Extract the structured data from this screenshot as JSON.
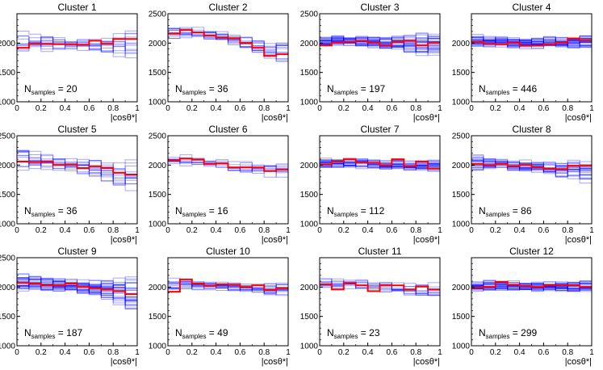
{
  "x_axis_label": "|cosθ*|",
  "n_label_base": "N",
  "n_label_subscript": "samples",
  "n_label_eq": " = ",
  "colors": {
    "highlight": "#ff0000",
    "band": "#0000ff",
    "frame": "#000000"
  },
  "chart_data": [
    {
      "type": "line",
      "title": "Cluster 1",
      "n_samples": "20",
      "xlim": [
        0,
        1
      ],
      "ylim": [
        1000,
        2500
      ],
      "yticks": [
        1000,
        1500,
        2000
      ],
      "xticks": [
        0,
        0.2,
        0.4,
        0.6,
        0.8,
        1
      ],
      "bins": 10,
      "red": [
        1920,
        1990,
        1990,
        1980,
        1980,
        1970,
        2040,
        1990,
        2070,
        2070
      ],
      "center": [
        2010,
        2010,
        2000,
        1990,
        1980,
        1975,
        1970,
        1965,
        1960,
        1950
      ],
      "spread": [
        200,
        180,
        150,
        120,
        100,
        100,
        120,
        160,
        210,
        260
      ],
      "n_lines": 12
    },
    {
      "type": "line",
      "title": "Cluster 2",
      "n_samples": "36",
      "xlim": [
        0,
        1
      ],
      "ylim": [
        1000,
        2500
      ],
      "yticks": [
        1000,
        1500,
        2000,
        2500
      ],
      "xticks": [
        0,
        0.2,
        0.4,
        0.6,
        0.8,
        1
      ],
      "bins": 10,
      "red": [
        2160,
        2220,
        2180,
        2130,
        2100,
        2080,
        2000,
        1920,
        1780,
        1810
      ],
      "center": [
        2170,
        2180,
        2160,
        2120,
        2090,
        2050,
        1980,
        1910,
        1840,
        1790
      ],
      "spread": [
        120,
        110,
        110,
        100,
        110,
        120,
        140,
        160,
        200,
        240
      ],
      "n_lines": 14
    },
    {
      "type": "line",
      "title": "Cluster 3",
      "n_samples": "197",
      "xlim": [
        0,
        1
      ],
      "ylim": [
        1000,
        2500
      ],
      "yticks": [
        1000,
        1500,
        2000,
        2500
      ],
      "xticks": [
        0,
        0.2,
        0.4,
        0.6,
        0.8,
        1
      ],
      "bins": 10,
      "red": [
        1960,
        2010,
        2020,
        2040,
        2010,
        1960,
        2020,
        2040,
        1960,
        2000
      ],
      "center": [
        2020,
        2030,
        2030,
        2030,
        2020,
        2000,
        2000,
        1990,
        1980,
        1980
      ],
      "spread": [
        120,
        100,
        90,
        90,
        100,
        110,
        120,
        160,
        220,
        260
      ],
      "n_lines": 30
    },
    {
      "type": "line",
      "title": "Cluster 4",
      "n_samples": "446",
      "xlim": [
        0,
        1
      ],
      "ylim": [
        1000,
        2500
      ],
      "yticks": [
        1000,
        1500,
        2000
      ],
      "xticks": [
        0,
        0.2,
        0.4,
        0.6,
        0.8,
        1
      ],
      "bins": 10,
      "red": [
        2020,
        1990,
        1980,
        2010,
        1960,
        1960,
        1980,
        2010,
        2080,
        2050
      ],
      "center": [
        2030,
        2020,
        2020,
        2010,
        2000,
        2000,
        2010,
        2020,
        2030,
        2040
      ],
      "spread": [
        120,
        110,
        100,
        100,
        100,
        100,
        110,
        110,
        120,
        130
      ],
      "n_lines": 30
    },
    {
      "type": "line",
      "title": "Cluster 5",
      "n_samples": "36",
      "xlim": [
        0,
        1
      ],
      "ylim": [
        1000,
        2500
      ],
      "yticks": [
        1000,
        1500,
        2000,
        2500
      ],
      "xticks": [
        0,
        0.2,
        0.4,
        0.6,
        0.8,
        1
      ],
      "bins": 10,
      "red": [
        2060,
        2050,
        2060,
        2000,
        2010,
        1950,
        1980,
        1950,
        1870,
        1840
      ],
      "center": [
        2090,
        2080,
        2070,
        2040,
        2010,
        1980,
        1950,
        1920,
        1870,
        1830
      ],
      "spread": [
        200,
        170,
        150,
        140,
        130,
        140,
        160,
        200,
        260,
        310
      ],
      "n_lines": 14
    },
    {
      "type": "line",
      "title": "Cluster 6",
      "n_samples": "16",
      "xlim": [
        0,
        1
      ],
      "ylim": [
        1000,
        2500
      ],
      "yticks": [
        1000,
        1500,
        2000,
        2500
      ],
      "xticks": [
        0,
        0.2,
        0.4,
        0.6,
        0.8,
        1
      ],
      "bins": 10,
      "red": [
        2080,
        2110,
        2090,
        2020,
        2030,
        1960,
        1960,
        1960,
        1900,
        1920
      ],
      "center": [
        2090,
        2080,
        2070,
        2040,
        2010,
        1990,
        1970,
        1950,
        1940,
        1930
      ],
      "spread": [
        120,
        110,
        110,
        100,
        100,
        100,
        110,
        130,
        160,
        180
      ],
      "n_lines": 10
    },
    {
      "type": "line",
      "title": "Cluster 7",
      "n_samples": "112",
      "xlim": [
        0,
        1
      ],
      "ylim": [
        1000,
        2500
      ],
      "yticks": [
        1000,
        1500,
        2000
      ],
      "xticks": [
        0,
        0.2,
        0.4,
        0.6,
        0.8,
        1
      ],
      "bins": 10,
      "red": [
        2010,
        2060,
        2100,
        2040,
        2040,
        2000,
        2100,
        1980,
        2060,
        1940
      ],
      "center": [
        2030,
        2030,
        2030,
        2030,
        2020,
        2010,
        2010,
        2000,
        2000,
        1990
      ],
      "spread": [
        100,
        90,
        90,
        90,
        90,
        90,
        90,
        100,
        110,
        120
      ],
      "n_lines": 26
    },
    {
      "type": "line",
      "title": "Cluster 8",
      "n_samples": "86",
      "xlim": [
        0,
        1
      ],
      "ylim": [
        1000,
        2500
      ],
      "yticks": [
        1000,
        1500,
        2000,
        2500
      ],
      "xticks": [
        0,
        0.2,
        0.4,
        0.6,
        0.8,
        1
      ],
      "bins": 10,
      "red": [
        2020,
        2000,
        2020,
        1980,
        2000,
        1960,
        1940,
        1930,
        1990,
        1990
      ],
      "center": [
        2040,
        2030,
        2020,
        2000,
        1990,
        1970,
        1950,
        1930,
        1910,
        1880
      ],
      "spread": [
        140,
        120,
        110,
        110,
        110,
        110,
        120,
        140,
        170,
        200
      ],
      "n_lines": 24
    },
    {
      "type": "line",
      "title": "Cluster 9",
      "n_samples": "187",
      "xlim": [
        0,
        1
      ],
      "ylim": [
        1000,
        2500
      ],
      "yticks": [
        1000,
        1500,
        2000,
        2500
      ],
      "xticks": [
        0,
        0.2,
        0.4,
        0.6,
        0.8,
        1
      ],
      "bins": 10,
      "red": [
        2070,
        2060,
        2030,
        2030,
        2060,
        2000,
        1980,
        1960,
        1930,
        1880
      ],
      "center": [
        2080,
        2070,
        2060,
        2040,
        2020,
        2000,
        1980,
        1950,
        1910,
        1870
      ],
      "spread": [
        180,
        150,
        130,
        120,
        120,
        130,
        150,
        180,
        240,
        300
      ],
      "n_lines": 30
    },
    {
      "type": "line",
      "title": "Cluster 10",
      "n_samples": "49",
      "xlim": [
        0,
        1
      ],
      "ylim": [
        1000,
        2500
      ],
      "yticks": [
        1000,
        1500,
        2000
      ],
      "xticks": [
        0,
        0.2,
        0.4,
        0.6,
        0.8,
        1
      ],
      "bins": 10,
      "red": [
        1920,
        2130,
        2060,
        2020,
        2050,
        2040,
        2000,
        2030,
        1950,
        1980
      ],
      "center": [
        2040,
        2050,
        2040,
        2030,
        2020,
        2010,
        2000,
        1990,
        1980,
        1970
      ],
      "spread": [
        150,
        120,
        100,
        90,
        90,
        90,
        100,
        110,
        140,
        170
      ],
      "n_lines": 16
    },
    {
      "type": "line",
      "title": "Cluster 11",
      "n_samples": "23",
      "xlim": [
        0,
        1
      ],
      "ylim": [
        1000,
        2500
      ],
      "yticks": [
        1000,
        1500,
        2000
      ],
      "xticks": [
        0,
        0.2,
        0.4,
        0.6,
        0.8,
        1
      ],
      "bins": 10,
      "red": [
        2050,
        1960,
        2070,
        2030,
        1930,
        2030,
        2030,
        1960,
        2010,
        1960
      ],
      "center": [
        2060,
        2060,
        2040,
        2030,
        2010,
        2000,
        1990,
        1970,
        1940,
        1910
      ],
      "spread": [
        130,
        120,
        110,
        100,
        100,
        100,
        110,
        130,
        160,
        200
      ],
      "n_lines": 12
    },
    {
      "type": "line",
      "title": "Cluster 12",
      "n_samples": "299",
      "xlim": [
        0,
        1
      ],
      "ylim": [
        1000,
        2500
      ],
      "yticks": [
        1000,
        1500,
        2000
      ],
      "xticks": [
        0,
        0.2,
        0.4,
        0.6,
        0.8,
        1
      ],
      "bins": 10,
      "red": [
        1990,
        2000,
        2090,
        2040,
        2020,
        2000,
        2030,
        2030,
        2030,
        2000
      ],
      "center": [
        2020,
        2020,
        2020,
        2020,
        2010,
        2010,
        2010,
        2010,
        2010,
        2010
      ],
      "spread": [
        110,
        100,
        100,
        90,
        90,
        90,
        90,
        100,
        100,
        110
      ],
      "n_lines": 30
    }
  ]
}
